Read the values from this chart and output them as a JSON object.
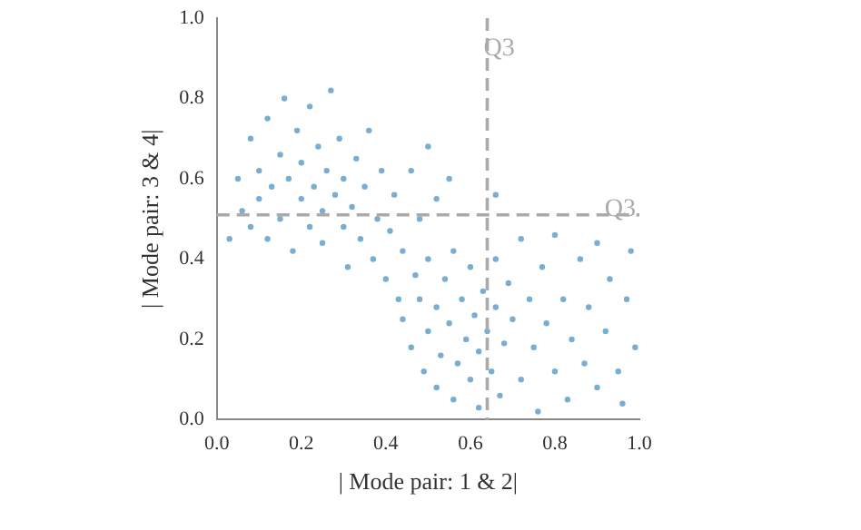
{
  "chart_data": {
    "type": "scatter",
    "xlabel": "| Mode pair: 1 & 2|",
    "ylabel": "| Mode pair: 3 & 4|",
    "xlim": [
      0,
      1
    ],
    "ylim": [
      0,
      1
    ],
    "xticks": [
      {
        "value": 0,
        "label": "0.0"
      },
      {
        "value": 0.2,
        "label": "0.2"
      },
      {
        "value": 0.4,
        "label": "0.4"
      },
      {
        "value": 0.6,
        "label": "0.6"
      },
      {
        "value": 0.8,
        "label": "0.8"
      },
      {
        "value": 1,
        "label": "1.0"
      }
    ],
    "yticks": [
      {
        "value": 0,
        "label": "0.0"
      },
      {
        "value": 0.2,
        "label": "0.2"
      },
      {
        "value": 0.4,
        "label": "0.4"
      },
      {
        "value": 0.6,
        "label": "0.6"
      },
      {
        "value": 0.8,
        "label": "0.8"
      },
      {
        "value": 1,
        "label": "1.0"
      }
    ],
    "grid": false,
    "legend": false,
    "marker": "circle",
    "ref_lines": [
      {
        "axis": "x",
        "value": 0.64,
        "label": "Q3",
        "color": "#aaaaaa",
        "line_style": "dashed"
      },
      {
        "axis": "y",
        "value": 0.51,
        "label": "Q3",
        "color": "#aaaaaa",
        "line_style": "dashed"
      }
    ],
    "series": [
      {
        "color": "#1f77b4",
        "x": [
          0.03,
          0.05,
          0.06,
          0.08,
          0.08,
          0.1,
          0.1,
          0.12,
          0.12,
          0.13,
          0.15,
          0.15,
          0.16,
          0.17,
          0.18,
          0.19,
          0.2,
          0.2,
          0.22,
          0.22,
          0.23,
          0.24,
          0.25,
          0.25,
          0.26,
          0.27,
          0.28,
          0.29,
          0.3,
          0.3,
          0.31,
          0.32,
          0.33,
          0.34,
          0.35,
          0.36,
          0.37,
          0.38,
          0.39,
          0.4,
          0.41,
          0.42,
          0.43,
          0.44,
          0.46,
          0.47,
          0.48,
          0.5,
          0.52,
          0.55,
          0.44,
          0.46,
          0.48,
          0.49,
          0.5,
          0.5,
          0.52,
          0.52,
          0.53,
          0.54,
          0.55,
          0.56,
          0.56,
          0.57,
          0.58,
          0.59,
          0.6,
          0.6,
          0.61,
          0.62,
          0.62,
          0.63,
          0.64,
          0.65,
          0.66,
          0.66,
          0.67,
          0.68,
          0.69,
          0.7,
          0.72,
          0.72,
          0.74,
          0.75,
          0.76,
          0.77,
          0.78,
          0.8,
          0.8,
          0.82,
          0.83,
          0.84,
          0.86,
          0.87,
          0.88,
          0.9,
          0.9,
          0.92,
          0.93,
          0.95,
          0.96,
          0.97,
          0.98,
          0.99,
          0.66
        ],
        "values": [
          0.45,
          0.6,
          0.52,
          0.7,
          0.48,
          0.62,
          0.55,
          0.75,
          0.45,
          0.58,
          0.66,
          0.5,
          0.8,
          0.6,
          0.42,
          0.72,
          0.55,
          0.64,
          0.48,
          0.78,
          0.58,
          0.68,
          0.52,
          0.44,
          0.62,
          0.82,
          0.56,
          0.7,
          0.48,
          0.6,
          0.38,
          0.53,
          0.65,
          0.45,
          0.58,
          0.72,
          0.4,
          0.5,
          0.62,
          0.35,
          0.47,
          0.56,
          0.3,
          0.42,
          0.62,
          0.36,
          0.5,
          0.68,
          0.55,
          0.6,
          0.25,
          0.18,
          0.3,
          0.12,
          0.22,
          0.4,
          0.08,
          0.28,
          0.16,
          0.35,
          0.24,
          0.05,
          0.42,
          0.14,
          0.3,
          0.2,
          0.1,
          0.38,
          0.26,
          0.03,
          0.17,
          0.32,
          0.22,
          0.12,
          0.4,
          0.28,
          0.06,
          0.19,
          0.34,
          0.25,
          0.1,
          0.45,
          0.3,
          0.18,
          0.02,
          0.38,
          0.24,
          0.12,
          0.46,
          0.3,
          0.05,
          0.2,
          0.4,
          0.14,
          0.28,
          0.08,
          0.44,
          0.22,
          0.35,
          0.12,
          0.04,
          0.3,
          0.42,
          0.18,
          0.56
        ]
      }
    ]
  }
}
